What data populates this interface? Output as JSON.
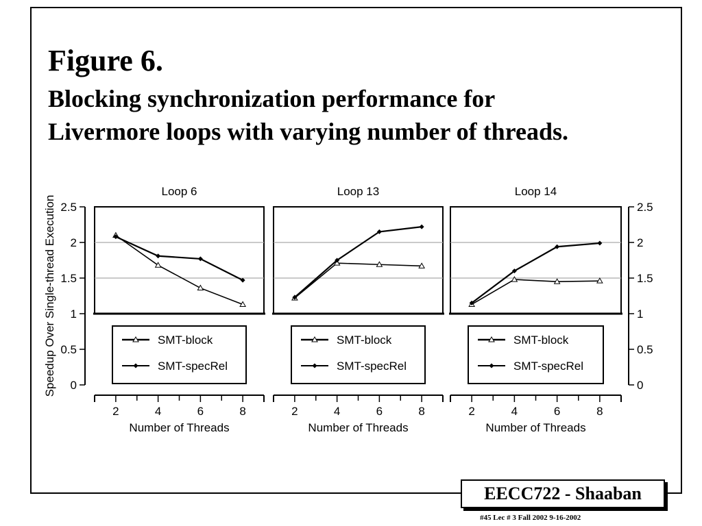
{
  "slide": {
    "title": "Figure 6.",
    "caption_line1": "Blocking synchronization performance for",
    "caption_line2": "Livermore loops with varying number of threads.",
    "footer_badge": "EECC722 - Shaaban",
    "footer_note": "#45   Lec # 3   Fall 2002  9-16-2002"
  },
  "chart_data": [
    {
      "type": "line",
      "title": "Loop 6",
      "xlabel": "Number of Threads",
      "ylabel": "Speedup Over Single-thread Execution",
      "x": [
        2,
        4,
        6,
        8
      ],
      "ylim": [
        0,
        2.5
      ],
      "yticks": [
        "0",
        "0.5",
        "1",
        "1.5",
        "2",
        "2.5"
      ],
      "xticks": [
        "2",
        "4",
        "6",
        "8"
      ],
      "series": [
        {
          "name": "SMT-block",
          "marker": "triangle",
          "values": [
            2.1,
            1.68,
            1.36,
            1.13
          ]
        },
        {
          "name": "SMT-specRel",
          "marker": "diamond",
          "values": [
            2.08,
            1.81,
            1.77,
            1.47
          ]
        }
      ],
      "legend": "bottom"
    },
    {
      "type": "line",
      "title": "Loop 13",
      "xlabel": "Number of Threads",
      "x": [
        2,
        4,
        6,
        8
      ],
      "ylim": [
        0,
        2.5
      ],
      "xticks": [
        "2",
        "4",
        "6",
        "8"
      ],
      "series": [
        {
          "name": "SMT-block",
          "marker": "triangle",
          "values": [
            1.22,
            1.71,
            1.69,
            1.67
          ]
        },
        {
          "name": "SMT-specRel",
          "marker": "diamond",
          "values": [
            1.23,
            1.75,
            2.15,
            2.22
          ]
        }
      ],
      "legend": "bottom"
    },
    {
      "type": "line",
      "title": "Loop 14",
      "xlabel": "Number of Threads",
      "x": [
        2,
        4,
        6,
        8
      ],
      "ylim": [
        0,
        2.5
      ],
      "yticks": [
        "0",
        "0.5",
        "1",
        "1.5",
        "2",
        "2.5"
      ],
      "xticks": [
        "2",
        "4",
        "6",
        "8"
      ],
      "series": [
        {
          "name": "SMT-block",
          "marker": "triangle",
          "values": [
            1.13,
            1.48,
            1.45,
            1.46
          ]
        },
        {
          "name": "SMT-specRel",
          "marker": "diamond",
          "values": [
            1.15,
            1.6,
            1.94,
            1.99
          ]
        }
      ],
      "legend": "bottom"
    }
  ]
}
